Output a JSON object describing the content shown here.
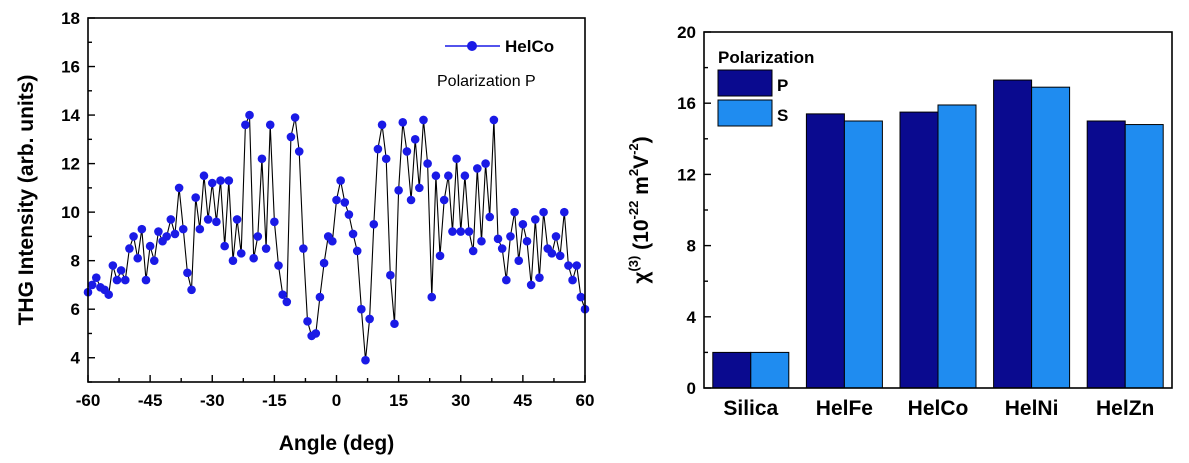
{
  "chart_data": [
    {
      "type": "line",
      "xlabel": "Angle (deg)",
      "ylabel": "THG Intensity (arb. units)",
      "xlim": [
        -60,
        60
      ],
      "ylim": [
        3,
        18
      ],
      "xticks": [
        -60,
        -45,
        -30,
        -15,
        0,
        15,
        30,
        45,
        60
      ],
      "yticks": [
        4,
        6,
        8,
        10,
        12,
        14,
        16,
        18
      ],
      "legend": {
        "entries": [
          "HelCo"
        ],
        "position": "top-right"
      },
      "annotation": "Polarization P",
      "colors": {
        "series": "#1a1ae6"
      },
      "series": [
        {
          "name": "HelCo",
          "x": [
            -60,
            -59,
            -58,
            -57,
            -56,
            -55,
            -54,
            -53,
            -52,
            -51,
            -50,
            -49,
            -48,
            -47,
            -46,
            -45,
            -44,
            -43,
            -42,
            -41,
            -40,
            -39,
            -38,
            -37,
            -36,
            -35,
            -34,
            -33,
            -32,
            -31,
            -30,
            -29,
            -28,
            -27,
            -26,
            -25,
            -24,
            -23,
            -22,
            -21,
            -20,
            -19,
            -18,
            -17,
            -16,
            -15,
            -14,
            -13,
            -12,
            -11,
            -10,
            -9,
            -8,
            -7,
            -6,
            -5,
            -4,
            -3,
            -2,
            -1,
            0,
            1,
            2,
            3,
            4,
            5,
            6,
            7,
            8,
            9,
            10,
            11,
            12,
            13,
            14,
            15,
            16,
            17,
            18,
            19,
            20,
            21,
            22,
            23,
            24,
            25,
            26,
            27,
            28,
            29,
            30,
            31,
            32,
            33,
            34,
            35,
            36,
            37,
            38,
            39,
            40,
            41,
            42,
            43,
            44,
            45,
            46,
            47,
            48,
            49,
            50,
            51,
            52,
            53,
            54,
            55,
            56,
            57,
            58,
            59,
            60
          ],
          "y": [
            6.7,
            7.0,
            7.3,
            6.9,
            6.8,
            6.6,
            7.8,
            7.2,
            7.6,
            7.2,
            8.5,
            9.0,
            8.1,
            9.3,
            7.2,
            8.6,
            8.0,
            9.2,
            8.8,
            9.0,
            9.7,
            9.1,
            11.0,
            9.3,
            7.5,
            6.8,
            10.6,
            9.3,
            11.5,
            9.7,
            11.2,
            9.6,
            11.3,
            8.6,
            11.3,
            8.0,
            9.7,
            8.3,
            13.6,
            14.0,
            8.1,
            9.0,
            12.2,
            8.5,
            13.6,
            9.6,
            7.8,
            6.6,
            6.3,
            13.1,
            13.9,
            12.5,
            8.5,
            5.5,
            4.9,
            5.0,
            6.5,
            7.9,
            9.0,
            8.8,
            10.5,
            11.3,
            10.4,
            9.9,
            9.1,
            8.4,
            6.0,
            3.9,
            5.6,
            9.5,
            12.6,
            13.6,
            12.2,
            7.4,
            5.4,
            10.9,
            13.7,
            12.5,
            10.5,
            13.0,
            11.0,
            13.8,
            12.0,
            6.5,
            11.5,
            8.2,
            10.5,
            11.5,
            9.2,
            12.2,
            9.2,
            11.5,
            9.2,
            8.4,
            11.8,
            8.8,
            12.0,
            9.8,
            13.8,
            8.9,
            8.5,
            7.2,
            9.0,
            10.0,
            8.0,
            9.5,
            8.8,
            7.0,
            9.7,
            7.3,
            10.0,
            8.5,
            8.3,
            9.0,
            8.2,
            10.0,
            7.8,
            7.2,
            7.8,
            6.5,
            6.0
          ]
        }
      ]
    },
    {
      "type": "bar",
      "ylabel": "χ(3) (10-22 m2V-2)",
      "ylabel_parts": {
        "chi": "χ",
        "sup1": "(3)",
        "body1": " (10",
        "sup2": "-22",
        "body2": " m",
        "sup3": "2",
        "body3": "V",
        "sup4": "-2",
        "close": ")"
      },
      "ylim": [
        0,
        20
      ],
      "yticks": [
        0,
        4,
        8,
        12,
        16,
        20
      ],
      "categories": [
        "Silica",
        "HelFe",
        "HelCo",
        "HelNi",
        "HelZn"
      ],
      "legend": {
        "title": "Polarization",
        "position": "top-left"
      },
      "series": [
        {
          "name": "P",
          "color": "#0a0a8f",
          "values": [
            2.0,
            15.4,
            15.5,
            17.3,
            15.0
          ]
        },
        {
          "name": "S",
          "color": "#1f8cf0",
          "values": [
            2.0,
            15.0,
            15.9,
            16.9,
            14.8
          ]
        }
      ]
    }
  ]
}
